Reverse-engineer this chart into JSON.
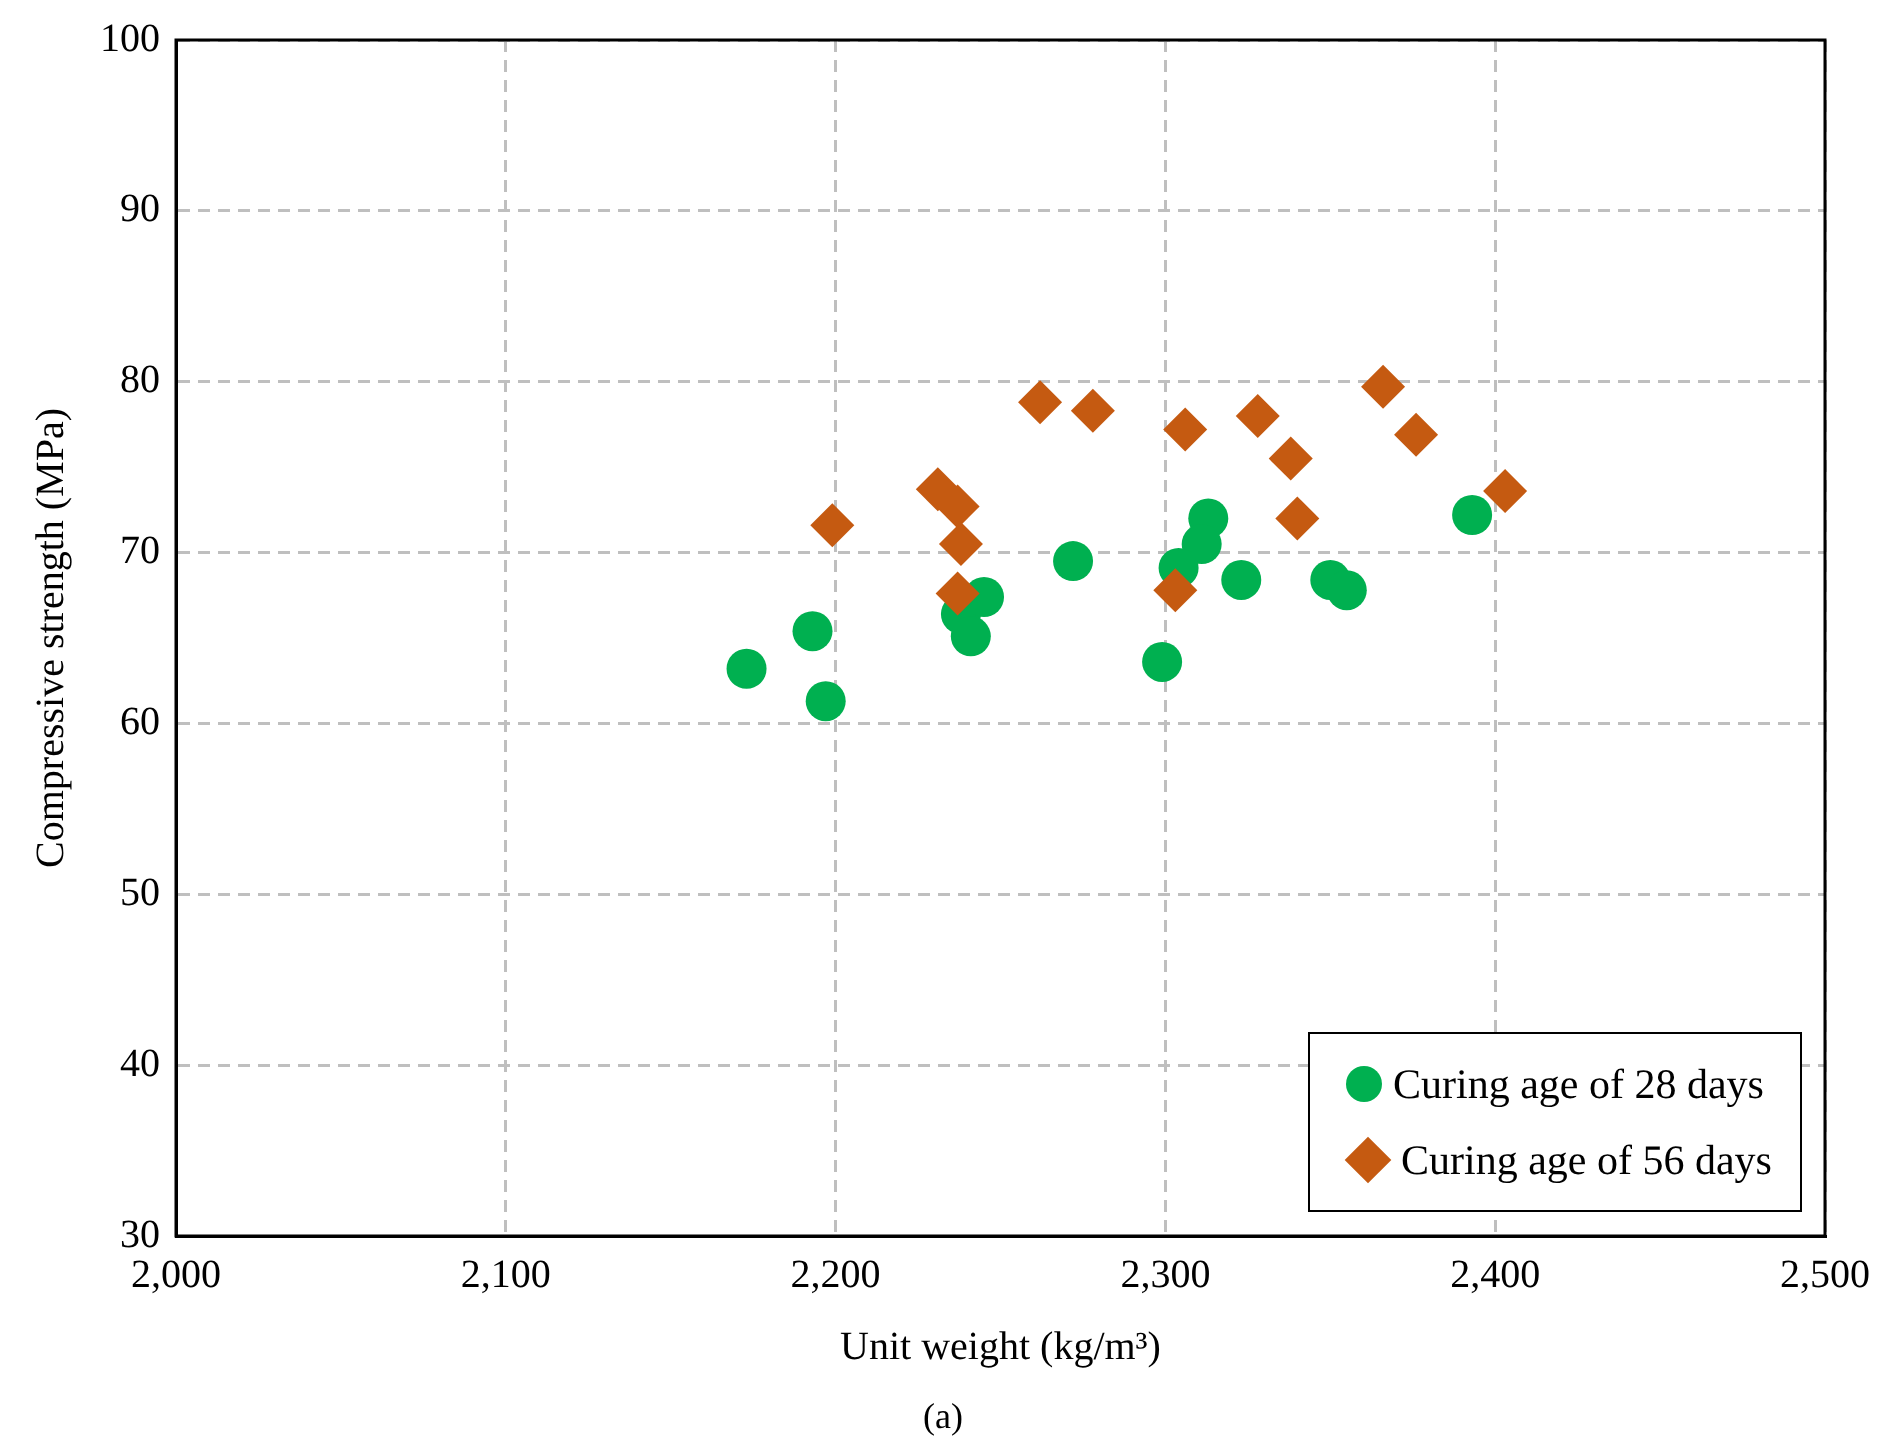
{
  "chart_data": {
    "type": "scatter",
    "xlabel": "Unit weight (kg/m³)",
    "ylabel": "Compressive strength (MPa)",
    "xlim": [
      2000,
      2500
    ],
    "xticks": [
      {
        "value": 2000,
        "label": "2,000"
      },
      {
        "value": 2100,
        "label": "2,100"
      },
      {
        "value": 2200,
        "label": "2,200"
      },
      {
        "value": 2300,
        "label": "2,300"
      },
      {
        "value": 2400,
        "label": "2,400"
      },
      {
        "value": 2500,
        "label": "2,500"
      }
    ],
    "ylim": [
      30,
      100
    ],
    "yticks": [
      30,
      40,
      50,
      60,
      70,
      80,
      90,
      100
    ],
    "grid": true,
    "legend": "bottom right",
    "annotations": [
      "(a)"
    ],
    "series": [
      {
        "name": "Curing age of 28 days",
        "color": "#00b050",
        "marker": "circle",
        "x": [
          2173,
          2193,
          2197,
          2238,
          2245,
          2241,
          2272,
          2299,
          2313,
          2311,
          2304,
          2323,
          2350,
          2355,
          2393
        ],
        "values": [
          63.2,
          65.4,
          61.3,
          66.4,
          67.4,
          65.1,
          69.5,
          63.6,
          72.0,
          70.5,
          69.1,
          68.4,
          68.4,
          67.8,
          72.2
        ]
      },
      {
        "name": "Curing age of 56 days",
        "color": "#c55a11",
        "marker": "diamond",
        "x": [
          2199,
          2231,
          2237,
          2238,
          2237,
          2262,
          2278,
          2306,
          2303,
          2328,
          2338,
          2340,
          2366,
          2376,
          2403
        ],
        "values": [
          71.6,
          73.7,
          72.7,
          70.5,
          67.6,
          78.8,
          78.3,
          77.2,
          67.8,
          78.0,
          75.5,
          72.0,
          79.7,
          76.9,
          73.6
        ]
      }
    ]
  }
}
